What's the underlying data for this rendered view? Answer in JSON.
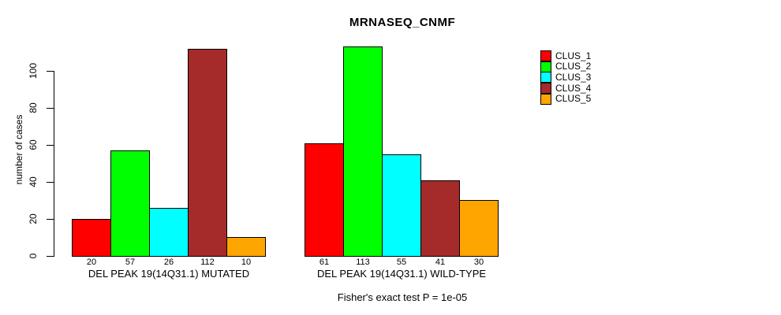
{
  "title": "MRNASEQ_CNMF",
  "chart_data": {
    "type": "bar",
    "title": "MRNASEQ_CNMF",
    "ylabel": "number of cases",
    "xlabel": "",
    "ylim": [
      0,
      113
    ],
    "yticks": [
      0,
      20,
      40,
      60,
      80,
      100
    ],
    "grid": false,
    "legend_position": "right-outside",
    "categories": [
      "DEL PEAK 19(14Q31.1) MUTATED",
      "DEL PEAK 19(14Q31.1) WILD-TYPE"
    ],
    "series": [
      {
        "name": "CLUS_1",
        "color": "#FF0000",
        "values": [
          20,
          61
        ]
      },
      {
        "name": "CLUS_2",
        "color": "#00FF00",
        "values": [
          57,
          113
        ]
      },
      {
        "name": "CLUS_3",
        "color": "#00FFFF",
        "values": [
          26,
          55
        ]
      },
      {
        "name": "CLUS_4",
        "color": "#A52A2A",
        "values": [
          112,
          41
        ]
      },
      {
        "name": "CLUS_5",
        "color": "#FFA500",
        "values": [
          10,
          30
        ]
      }
    ],
    "groups": [
      {
        "label": "DEL PEAK 19(14Q31.1) MUTATED",
        "values": [
          20,
          57,
          26,
          112,
          10
        ]
      },
      {
        "label": "DEL PEAK 19(14Q31.1) WILD-TYPE",
        "values": [
          61,
          113,
          55,
          41,
          30
        ]
      }
    ],
    "bar_value_labels": true,
    "annotation": "Fisher's exact test P = 1e-05"
  }
}
